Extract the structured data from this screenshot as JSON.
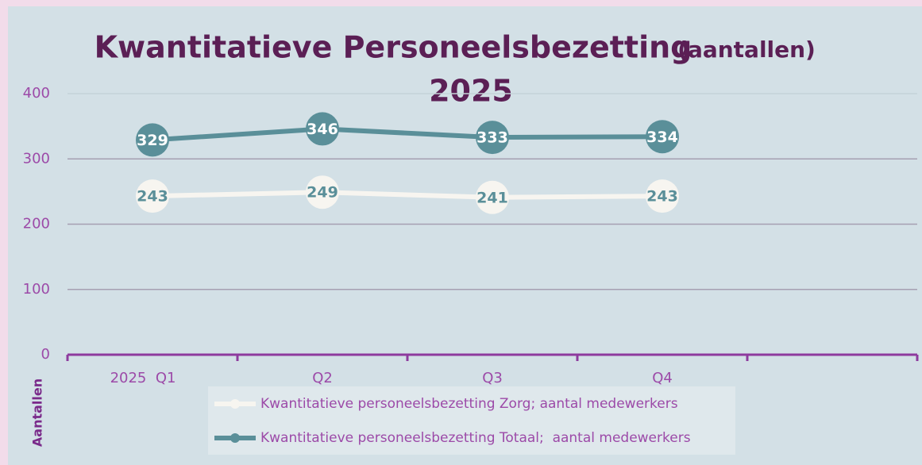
{
  "chart_data": {
    "type": "line",
    "title": "Kwantitatieve Personeelsbezetting",
    "title_note": "(aantallen)",
    "title_year": "2025",
    "y_label": "Aantallen",
    "categories": [
      "2025  Q1",
      "Q2",
      "Q3",
      "Q4",
      null
    ],
    "series": [
      {
        "name": "Kwantitatieve personeelsbezetting Zorg; aantal medewerkers",
        "color": "#f7f5f0",
        "label_color": "#5a8f99",
        "values": [
          243,
          249,
          241,
          243,
          null
        ]
      },
      {
        "name": "Kwantitatieve personeelsbezetting Totaal;  aantal medewerkers",
        "color": "#5a8f99",
        "label_color": "#ffffff",
        "values": [
          329,
          346,
          333,
          334,
          null
        ]
      }
    ],
    "ylim": [
      0,
      400
    ],
    "yticks": [
      0,
      100,
      200,
      300,
      400
    ],
    "grid": true
  }
}
